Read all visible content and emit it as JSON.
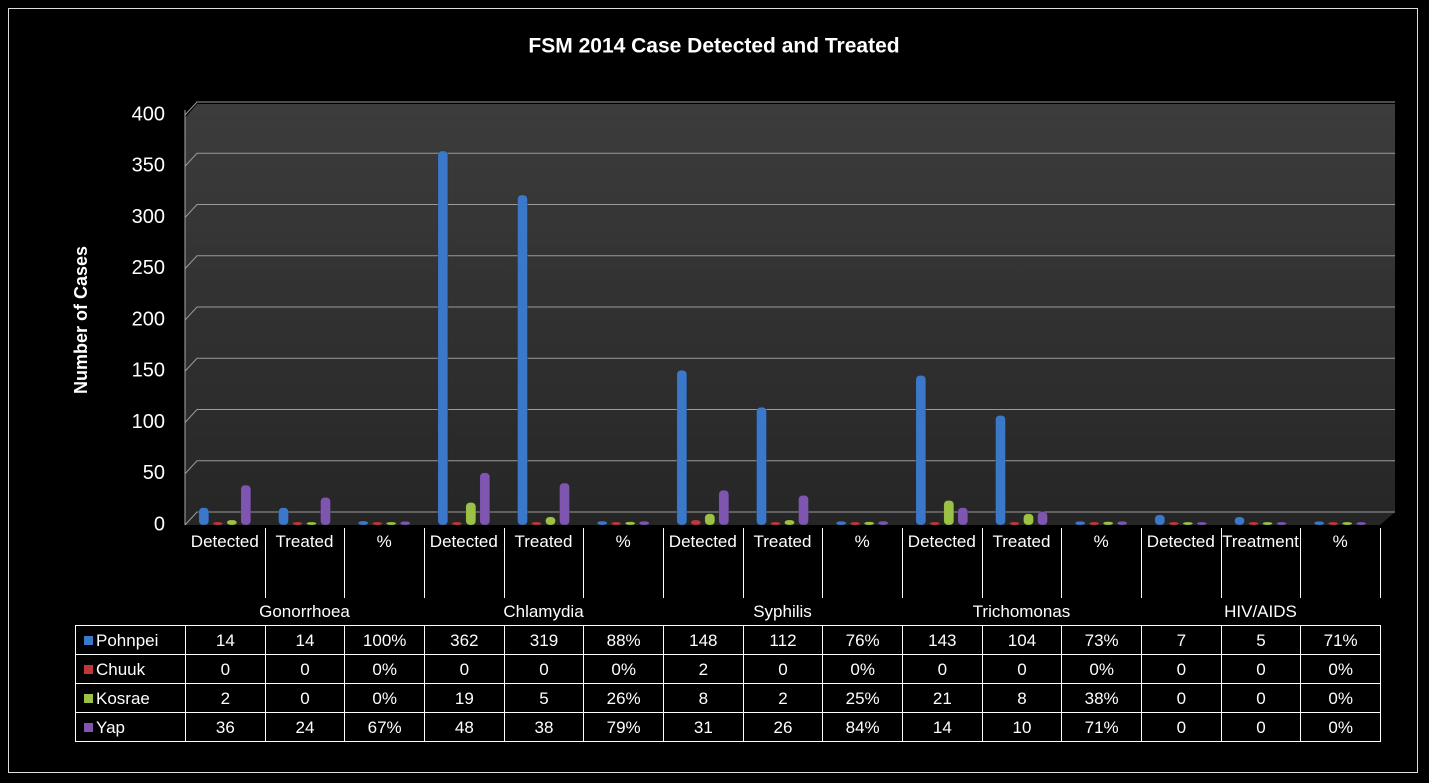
{
  "chart_data": {
    "type": "bar",
    "title": "FSM 2014 Case Detected and Treated",
    "y_label": "Number  of Cases",
    "categories": [
      "Detected",
      "Treated",
      "%",
      "Detected",
      "Treated",
      "%",
      "Detected",
      "Treated",
      "%",
      "Detected",
      "Treated",
      "%",
      "Detected",
      "Treatment",
      "%"
    ],
    "category_groups": [
      "Gonorrhoea",
      "Chlamydia",
      "Syphilis",
      "Trichomonas",
      "HIV/AIDS"
    ],
    "series": [
      {
        "name": "Pohnpei",
        "color": "#3b78c9",
        "values": [
          14,
          14,
          1,
          362,
          319,
          0.88,
          148,
          112,
          0.76,
          143,
          104,
          0.73,
          7,
          5,
          0.71
        ],
        "value_labels": [
          "14",
          "14",
          "100%",
          "362",
          "319",
          "88%",
          "148",
          "112",
          "76%",
          "143",
          "104",
          "73%",
          "7",
          "5",
          "71%"
        ]
      },
      {
        "name": "Chuuk",
        "color": "#c0393a",
        "values": [
          0,
          0,
          0,
          0,
          0,
          0,
          2,
          0,
          0,
          0,
          0,
          0,
          0,
          0,
          0
        ],
        "value_labels": [
          "0",
          "0",
          "0%",
          "0",
          "0",
          "0%",
          "2",
          "0",
          "0%",
          "0",
          "0",
          "0%",
          "0",
          "0",
          "0%"
        ]
      },
      {
        "name": "Kosrae",
        "color": "#9bc146",
        "values": [
          2,
          0,
          0,
          19,
          5,
          0.26,
          8,
          2,
          0.25,
          21,
          8,
          0.38,
          0,
          0,
          0
        ],
        "value_labels": [
          "2",
          "0",
          "0%",
          "19",
          "5",
          "26%",
          "8",
          "2",
          "25%",
          "21",
          "8",
          "38%",
          "0",
          "0",
          "0%"
        ]
      },
      {
        "name": "Yap",
        "color": "#7e56b0",
        "values": [
          36,
          24,
          0.67,
          48,
          38,
          0.79,
          31,
          26,
          0.84,
          14,
          10,
          0.71,
          0,
          0,
          0
        ],
        "value_labels": [
          "36",
          "24",
          "67%",
          "48",
          "38",
          "79%",
          "31",
          "26",
          "84%",
          "14",
          "10",
          "71%",
          "0",
          "0",
          "0%"
        ]
      }
    ],
    "ylim": [
      0,
      400
    ],
    "yticks": [
      0,
      50,
      100,
      150,
      200,
      250,
      300,
      350,
      400
    ],
    "grid": true
  }
}
